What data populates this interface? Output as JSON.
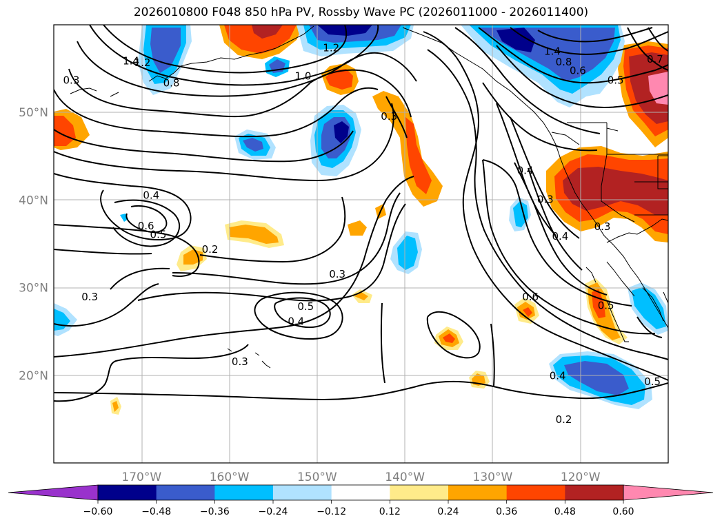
{
  "title": "2026010800 F048 850 hPa PV, Rossby Wave PC (2026011000 - 2026011400)",
  "map": {
    "projection": "PlateCarree",
    "lon_range": [
      -180,
      -110
    ],
    "lat_range": [
      10,
      60
    ],
    "lon_ticks": [
      {
        "lon": -170,
        "label": "170°W"
      },
      {
        "lon": -160,
        "label": "160°W"
      },
      {
        "lon": -150,
        "label": "150°W"
      },
      {
        "lon": -140,
        "label": "140°W"
      },
      {
        "lon": -130,
        "label": "130°W"
      },
      {
        "lon": -120,
        "label": "120°W"
      }
    ],
    "lat_ticks": [
      {
        "lat": 20,
        "label": "20°N"
      },
      {
        "lat": 30,
        "label": "30°N"
      },
      {
        "lat": 40,
        "label": "40°N"
      },
      {
        "lat": 50,
        "label": "50°N"
      }
    ],
    "gridlines": true,
    "coastlines": true
  },
  "colorbar": {
    "orientation": "horizontal",
    "extend": "both",
    "levels": [
      -0.6,
      -0.48,
      -0.36,
      -0.24,
      -0.12,
      0.12,
      0.24,
      0.36,
      0.48,
      0.6
    ],
    "tick_labels": [
      "−0.60",
      "−0.48",
      "−0.36",
      "−0.24",
      "−0.12",
      "0.12",
      "0.24",
      "0.36",
      "0.48",
      "0.60"
    ],
    "colors": [
      "#9932cc",
      "#00008b",
      "#3a5ccc",
      "#00bfff",
      "#b0e2ff",
      "#ffffff",
      "#ffeb8a",
      "#ffa500",
      "#ff4500",
      "#b22222",
      "#ff88b0"
    ]
  },
  "contour_labels": [
    {
      "text": "1.4",
      "lon": -171.2,
      "lat": 55.7
    },
    {
      "text": "1.2",
      "lon": -169.9,
      "lat": 55.5
    },
    {
      "text": "0.3",
      "lon": -178.0,
      "lat": 53.5
    },
    {
      "text": "0.8",
      "lon": -166.6,
      "lat": 53.2
    },
    {
      "text": "1.0",
      "lon": -151.6,
      "lat": 54.0
    },
    {
      "text": "1.2",
      "lon": -148.4,
      "lat": 57.2
    },
    {
      "text": "0.3",
      "lon": -141.8,
      "lat": 49.4
    },
    {
      "text": "1.4",
      "lon": -123.2,
      "lat": 56.8
    },
    {
      "text": "0.8",
      "lon": -121.9,
      "lat": 55.6
    },
    {
      "text": "0.6",
      "lon": -120.3,
      "lat": 54.6
    },
    {
      "text": "0.5",
      "lon": -116.0,
      "lat": 53.5
    },
    {
      "text": "0.7",
      "lon": -111.5,
      "lat": 55.9
    },
    {
      "text": "0.4",
      "lon": -168.9,
      "lat": 40.4
    },
    {
      "text": "0.6",
      "lon": -169.5,
      "lat": 36.9
    },
    {
      "text": "0.5",
      "lon": -168.1,
      "lat": 35.9
    },
    {
      "text": "0.2",
      "lon": -162.2,
      "lat": 34.2
    },
    {
      "text": "0.4",
      "lon": -126.3,
      "lat": 43.2
    },
    {
      "text": "0.3",
      "lon": -124.0,
      "lat": 39.9
    },
    {
      "text": "0.4",
      "lon": -122.3,
      "lat": 35.7
    },
    {
      "text": "0.3",
      "lon": -117.5,
      "lat": 36.8
    },
    {
      "text": "0.3",
      "lon": -147.7,
      "lat": 31.4
    },
    {
      "text": "0.5",
      "lon": -151.3,
      "lat": 27.7
    },
    {
      "text": "0.4",
      "lon": -152.4,
      "lat": 26.0
    },
    {
      "text": "0.3",
      "lon": -158.8,
      "lat": 21.4
    },
    {
      "text": "0.3",
      "lon": -175.9,
      "lat": 28.8
    },
    {
      "text": "0.6",
      "lon": -125.7,
      "lat": 28.8
    },
    {
      "text": "0.4",
      "lon": -122.6,
      "lat": 19.8
    },
    {
      "text": "0.5",
      "lon": -117.1,
      "lat": 27.8
    },
    {
      "text": "0.5",
      "lon": -111.8,
      "lat": 19.1
    },
    {
      "text": "0.2",
      "lon": -121.9,
      "lat": 14.8
    }
  ]
}
